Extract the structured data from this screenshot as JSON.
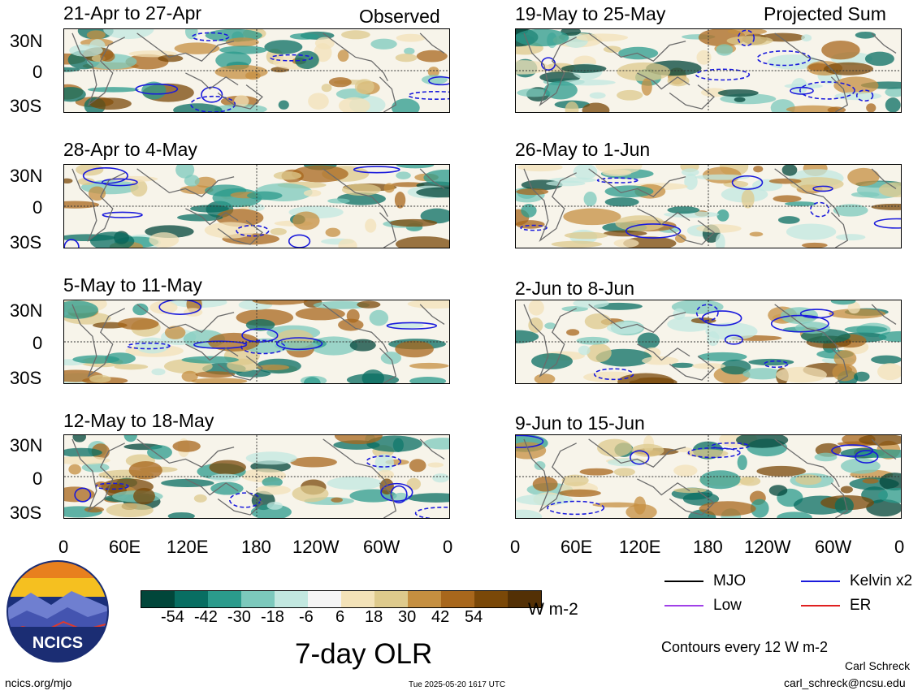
{
  "headers": {
    "left": "Observed",
    "right": "Projected Sum"
  },
  "panels": [
    {
      "title": "21-Apr to 27-Apr"
    },
    {
      "title": "19-May to 25-May"
    },
    {
      "title": "28-Apr to 4-May"
    },
    {
      "title": "26-May to 1-Jun"
    },
    {
      "title": "5-May to 11-May"
    },
    {
      "title": "2-Jun to 8-Jun"
    },
    {
      "title": "12-May to 18-May"
    },
    {
      "title": "9-Jun to 15-Jun"
    }
  ],
  "lat_labels": [
    "30N",
    "0",
    "30S"
  ],
  "lon_labels": [
    "0",
    "60E",
    "120E",
    "180",
    "120W",
    "60W",
    "0"
  ],
  "colorbar": {
    "colors": [
      "#01463a",
      "#086e62",
      "#2b9b8c",
      "#7cc9bc",
      "#c2e8e0",
      "#f5f5f5",
      "#f3e2b8",
      "#deca8c",
      "#c58f40",
      "#a8671c",
      "#7a4808",
      "#533005"
    ],
    "labels": [
      "-54",
      "-42",
      "-30",
      "-18",
      "-6",
      "6",
      "18",
      "30",
      "42",
      "54"
    ],
    "units": "W m-2"
  },
  "title": "7-day OLR",
  "legend": [
    {
      "label": "MJO",
      "color": "#000000"
    },
    {
      "label": "Kelvin x2",
      "color": "#1a1adc"
    },
    {
      "label": "Low",
      "color": "#a040e8"
    },
    {
      "label": "ER",
      "color": "#e02020"
    }
  ],
  "contour_note": "Contours every 12 W m-2",
  "credit_name": "Carl Schreck",
  "credit_email": "carl_schreck@ncsu.edu",
  "site": "ncics.org/mjo",
  "timestamp": "Tue 2025-05-20 1617 UTC",
  "logo_text": "NCICS"
}
